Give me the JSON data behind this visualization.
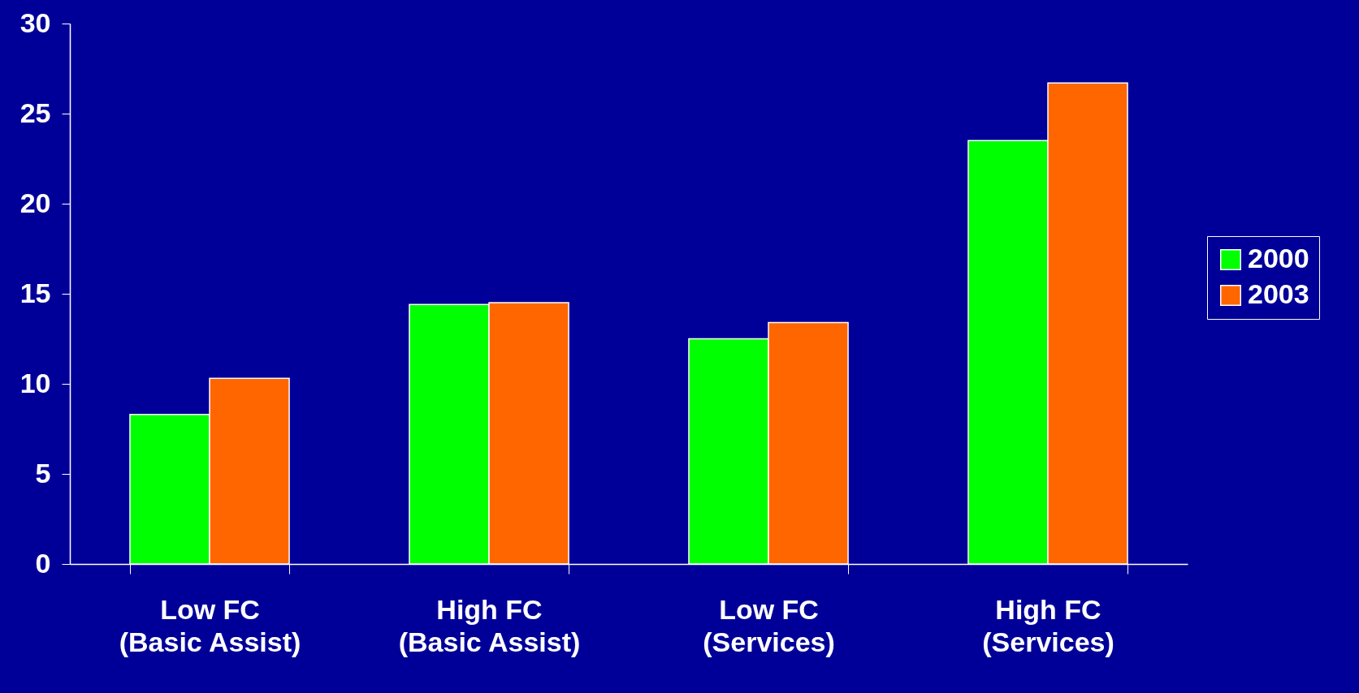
{
  "chart_data": {
    "type": "bar",
    "categories": [
      "Low FC\n(Basic Assist)",
      "High FC\n(Basic Assist)",
      "Low FC\n(Services)",
      "High FC\n(Services)"
    ],
    "series": [
      {
        "name": "2000",
        "color": "#00ff00",
        "values": [
          8.3,
          14.4,
          12.5,
          23.5
        ]
      },
      {
        "name": "2003",
        "color": "#ff6600",
        "values": [
          10.3,
          14.5,
          13.4,
          26.7
        ]
      }
    ],
    "ylim": [
      0,
      30
    ],
    "yticks": [
      0,
      5,
      10,
      15,
      20,
      25,
      30
    ],
    "grid": false,
    "legend": "right"
  }
}
